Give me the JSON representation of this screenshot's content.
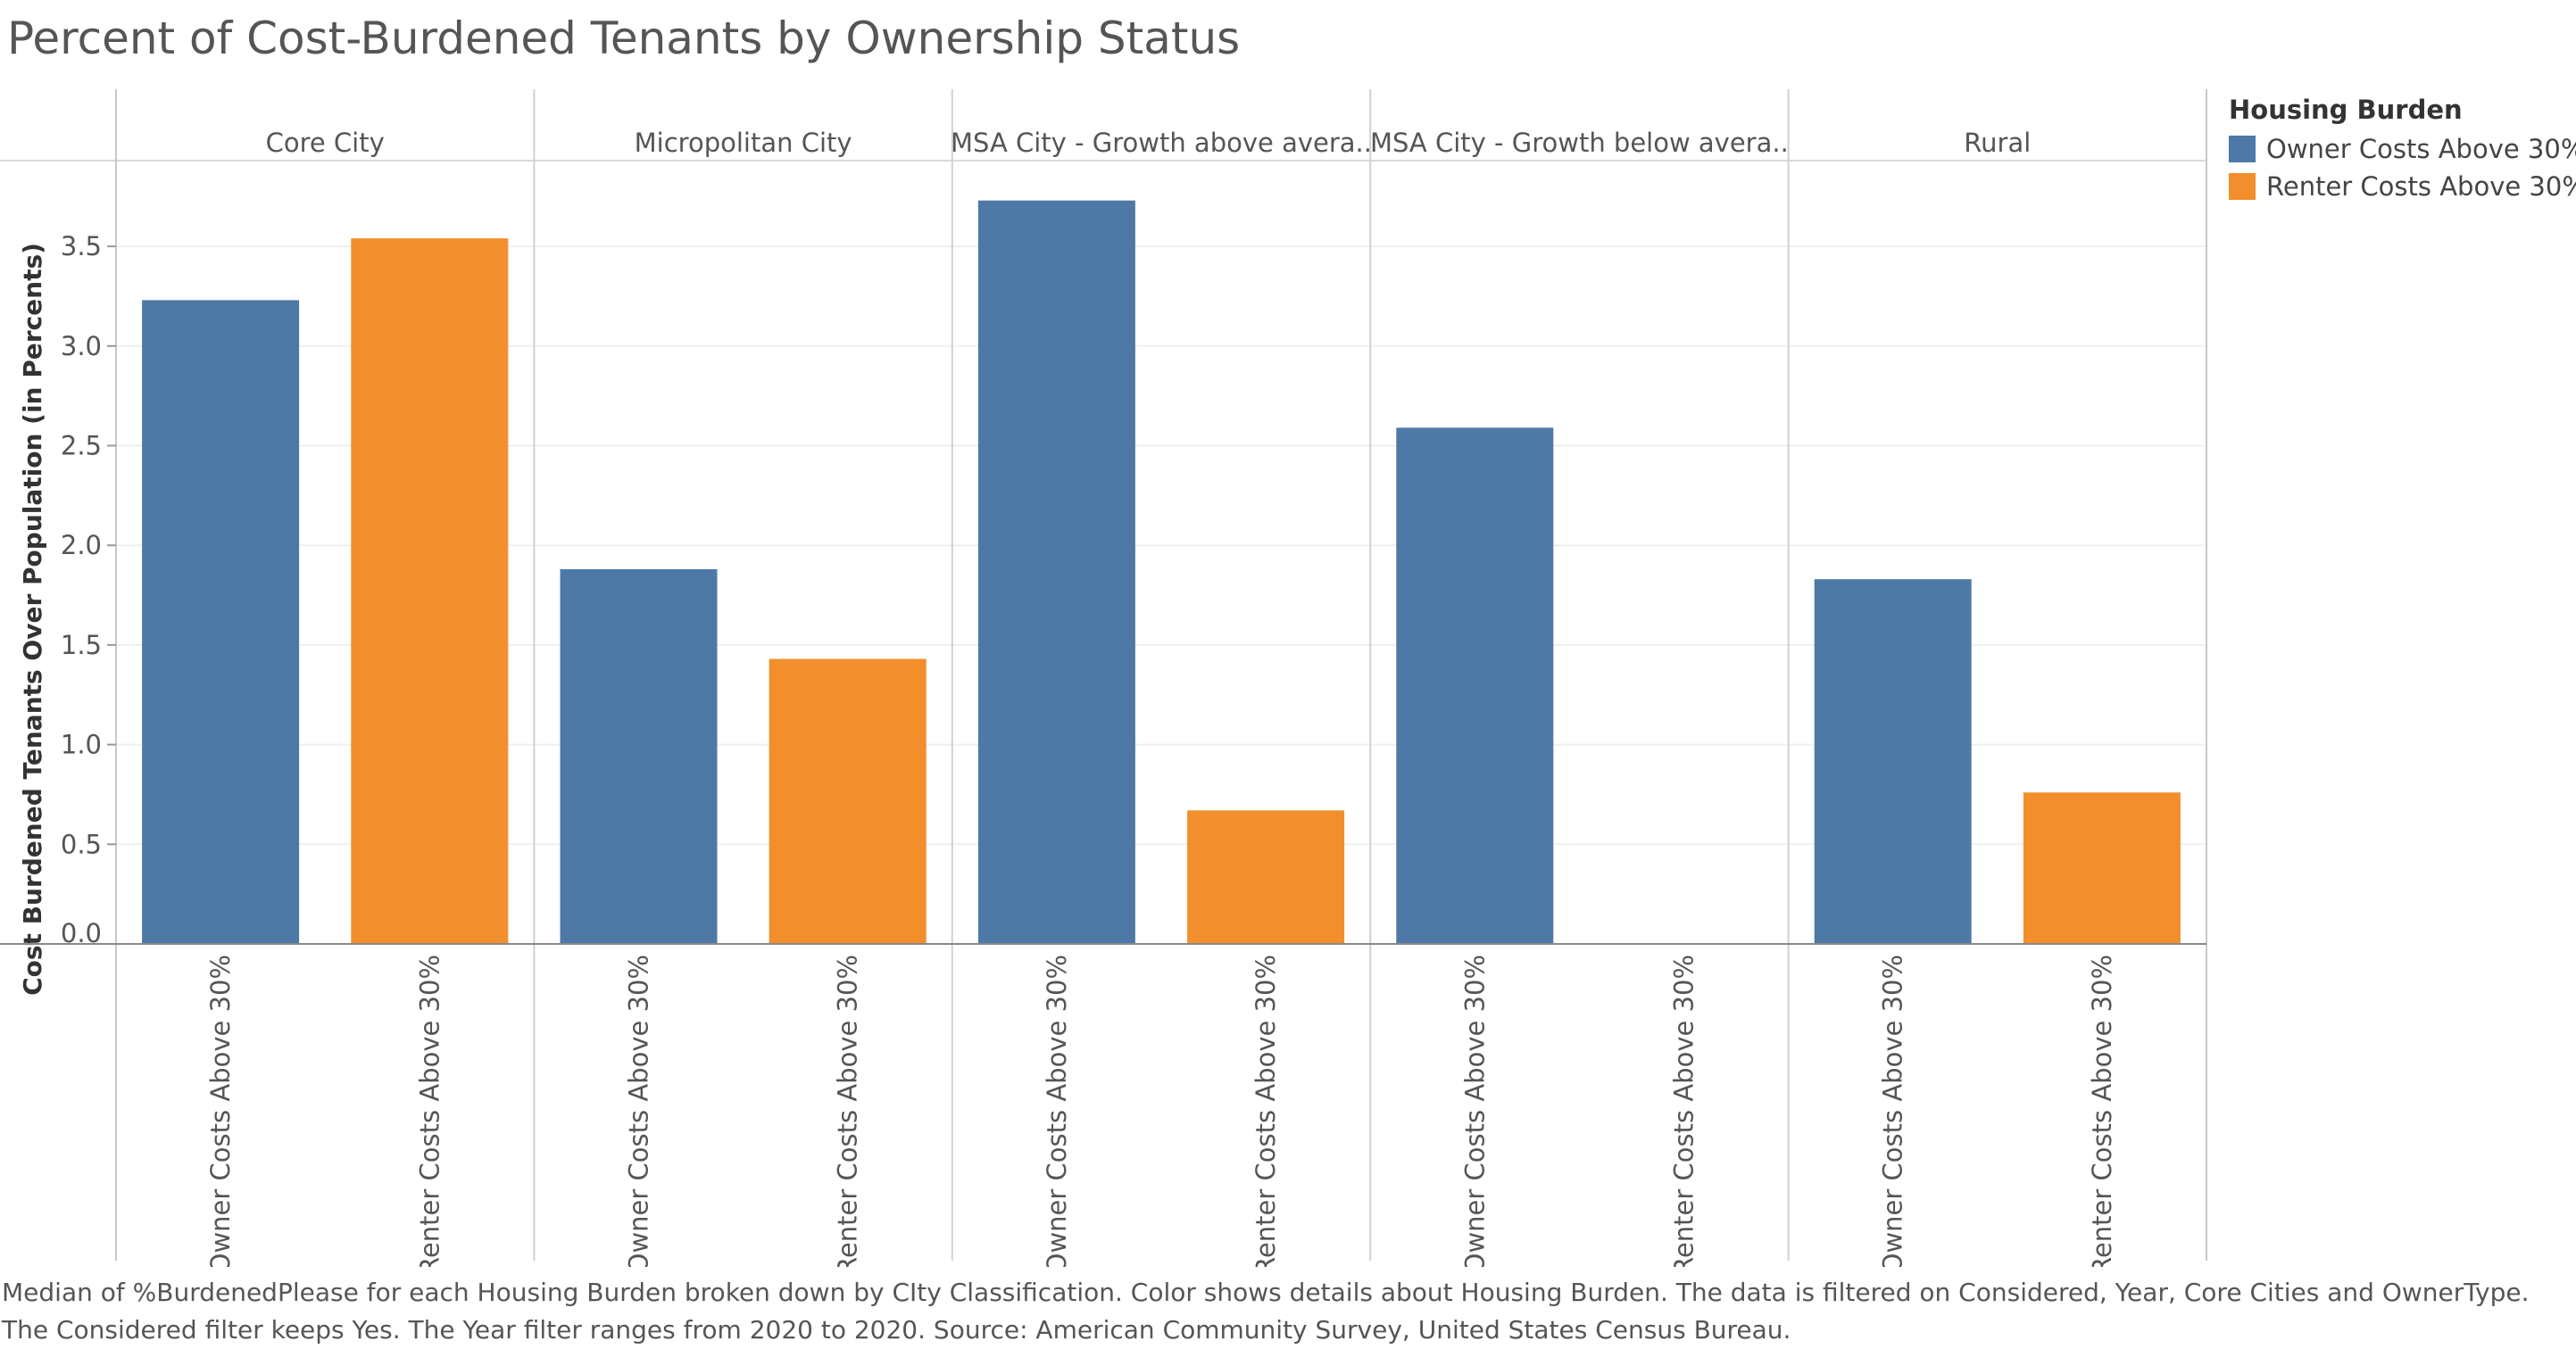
{
  "chart_data": {
    "type": "bar",
    "title": "Percent of Cost-Burdened Tenants by Ownership Status",
    "ylabel": "Cost Burdened Tenants Over Population (in Percents)",
    "ylim": [
      0,
      3.8
    ],
    "yticks": [
      "0.0",
      "0.5",
      "1.0",
      "1.5",
      "2.0",
      "2.5",
      "3.0",
      "3.5"
    ],
    "grid": true,
    "legend_position": "top-right",
    "legend_title": "Housing Burden",
    "categories": [
      "Owner Costs Above 30%",
      "Renter Costs Above 30%"
    ],
    "panels": [
      {
        "name": "Core City",
        "values": [
          3.23,
          3.54
        ]
      },
      {
        "name": "Micropolitan City",
        "values": [
          1.88,
          1.43
        ]
      },
      {
        "name": "MSA City - Growth above avera..",
        "values": [
          3.73,
          0.67
        ]
      },
      {
        "name": "MSA City - Growth below avera..",
        "values": [
          2.59,
          null
        ]
      },
      {
        "name": "Rural",
        "values": [
          1.83,
          0.76
        ]
      }
    ],
    "series": [
      {
        "name": "Owner Costs Above 30%",
        "color": "#4e79a7"
      },
      {
        "name": "Renter Costs Above 30%",
        "color": "#f28e2b"
      }
    ]
  },
  "caption": "Median of %BurdenedPlease for each Housing Burden broken down by CIty Classification.  Color shows details about Housing Burden. The data is filtered on Considered, Year, Core Cities and OwnerType. The Considered filter keeps Yes. The Year filter ranges from 2020 to 2020. Source: American Community Survey, United States Census Bureau."
}
